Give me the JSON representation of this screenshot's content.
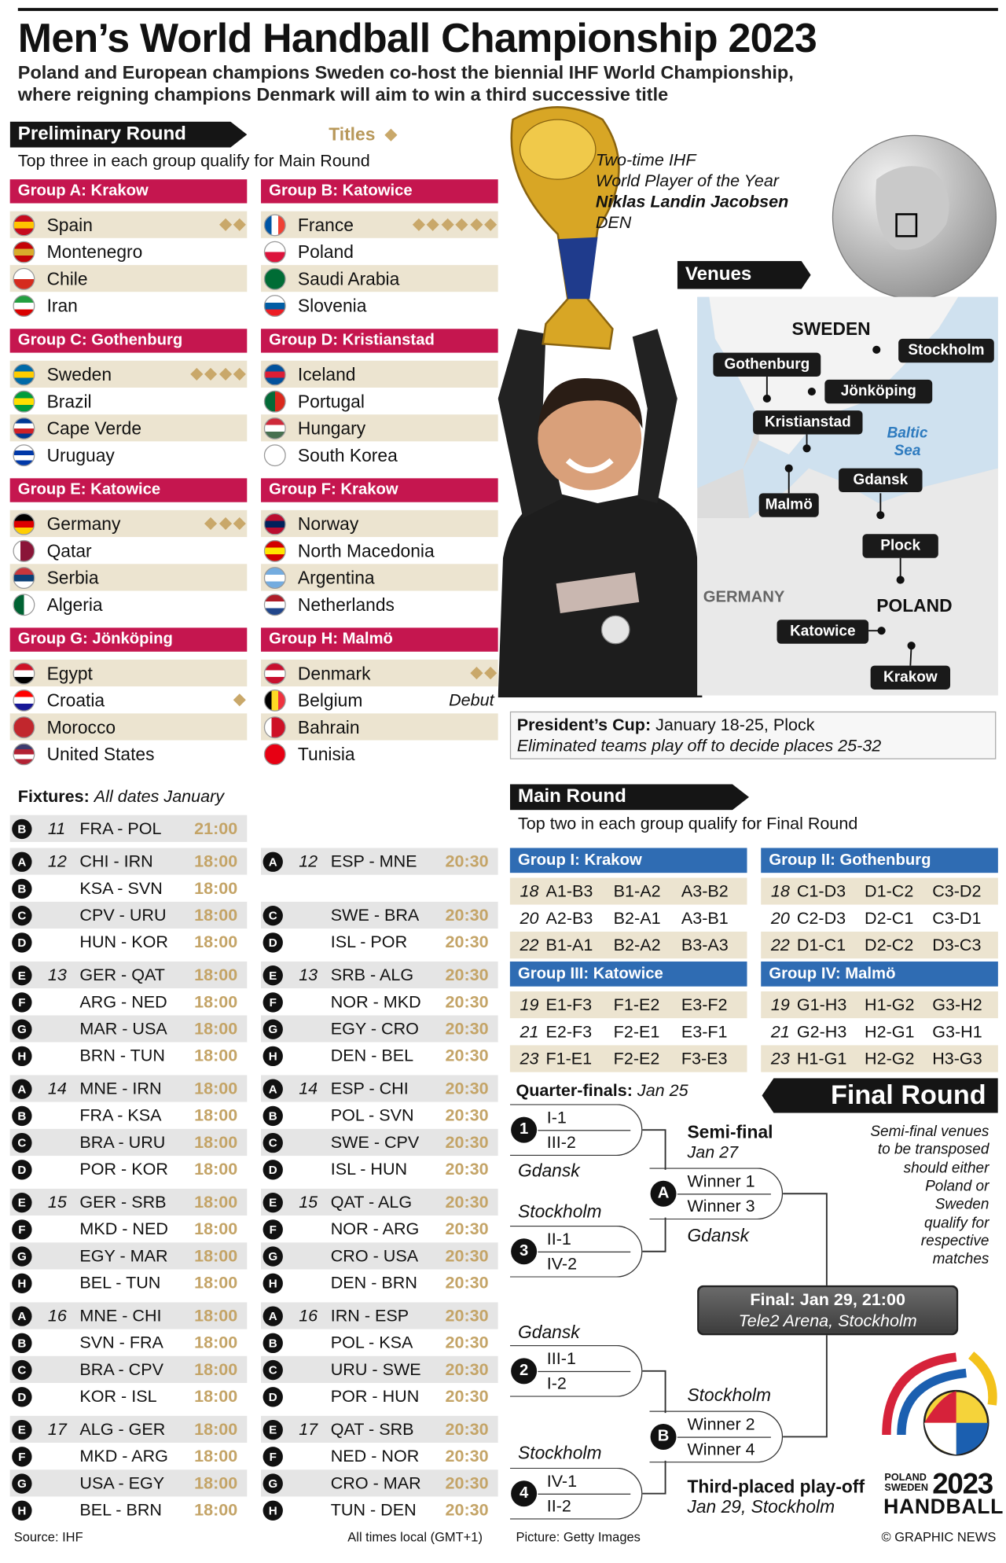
{
  "header": {
    "title": "Men’s World Handball Championship 2023",
    "subtitle_lines": [
      "Poland and European champions Sweden co-host the biennial IHF World Championship,",
      "where reigning champions Denmark will aim to win a third successive title"
    ]
  },
  "preliminary_round": {
    "heading": "Preliminary Round",
    "titles_label": "Titles",
    "note": "Top three in each group qualify for Main Round",
    "groups": [
      {
        "name": "Group A: Krakow",
        "teams": [
          {
            "name": "Spain",
            "titles": 2
          },
          {
            "name": "Montenegro"
          },
          {
            "name": "Chile"
          },
          {
            "name": "Iran"
          }
        ]
      },
      {
        "name": "Group B: Katowice",
        "teams": [
          {
            "name": "France",
            "titles": 6
          },
          {
            "name": "Poland"
          },
          {
            "name": "Saudi Arabia"
          },
          {
            "name": "Slovenia"
          }
        ]
      },
      {
        "name": "Group C: Gothenburg",
        "teams": [
          {
            "name": "Sweden",
            "titles": 4
          },
          {
            "name": "Brazil"
          },
          {
            "name": "Cape Verde"
          },
          {
            "name": "Uruguay"
          }
        ]
      },
      {
        "name": "Group D: Kristianstad",
        "teams": [
          {
            "name": "Iceland"
          },
          {
            "name": "Portugal"
          },
          {
            "name": "Hungary"
          },
          {
            "name": "South Korea"
          }
        ]
      },
      {
        "name": "Group E: Katowice",
        "teams": [
          {
            "name": "Germany",
            "titles": 3
          },
          {
            "name": "Qatar"
          },
          {
            "name": "Serbia"
          },
          {
            "name": "Algeria"
          }
        ]
      },
      {
        "name": "Group F: Krakow",
        "teams": [
          {
            "name": "Norway"
          },
          {
            "name": "North Macedonia"
          },
          {
            "name": "Argentina"
          },
          {
            "name": "Netherlands"
          }
        ]
      },
      {
        "name": "Group G: Jönköping",
        "teams": [
          {
            "name": "Egypt"
          },
          {
            "name": "Croatia",
            "titles": 1
          },
          {
            "name": "Morocco"
          },
          {
            "name": "United States"
          }
        ]
      },
      {
        "name": "Group H: Malmö",
        "teams": [
          {
            "name": "Denmark",
            "titles": 2
          },
          {
            "name": "Belgium",
            "note": "Debut"
          },
          {
            "name": "Bahrain"
          },
          {
            "name": "Tunisia"
          }
        ]
      }
    ]
  },
  "player": {
    "caption_lines": [
      "Two-time IHF",
      "World Player of the Year"
    ],
    "name": "Niklas Landin Jacobsen",
    "country": "DEN"
  },
  "venues": {
    "heading": "Venues",
    "regions": [
      "SWEDEN",
      "GERMANY",
      "POLAND"
    ],
    "sea": "Baltic Sea",
    "cities": [
      "Stockholm",
      "Gothenburg",
      "Jönköping",
      "Kristianstad",
      "Malmö",
      "Gdansk",
      "Plock",
      "Katowice",
      "Krakow"
    ]
  },
  "presidents_cup": {
    "label": "President’s Cup:",
    "dates": "January 18-25, Plock",
    "note": "Eliminated teams play off to decide places 25-32"
  },
  "fixtures": {
    "label": "Fixtures:",
    "note": "All dates January",
    "days": [
      {
        "day": 11,
        "left": [
          {
            "group": "B",
            "match": "FRA - POL",
            "time": "21:00"
          }
        ]
      },
      {
        "day": 12,
        "left": [
          {
            "group": "A",
            "match": "CHI - IRN",
            "time": "18:00"
          },
          {
            "group": "B",
            "match": "KSA - SVN",
            "time": "18:00"
          },
          {
            "group": "C",
            "match": "CPV - URU",
            "time": "18:00"
          },
          {
            "group": "D",
            "match": "HUN - KOR",
            "time": "18:00"
          }
        ],
        "right": [
          {
            "group": "A",
            "match": "ESP - MNE",
            "time": "20:30"
          },
          {
            "group": "C",
            "match": "SWE - BRA",
            "time": "20:30"
          },
          {
            "group": "D",
            "match": "ISL - POR",
            "time": "20:30"
          }
        ]
      },
      {
        "day": 13,
        "left": [
          {
            "group": "E",
            "match": "GER - QAT",
            "time": "18:00"
          },
          {
            "group": "F",
            "match": "ARG - NED",
            "time": "18:00"
          },
          {
            "group": "G",
            "match": "MAR - USA",
            "time": "18:00"
          },
          {
            "group": "H",
            "match": "BRN - TUN",
            "time": "18:00"
          }
        ],
        "right": [
          {
            "group": "E",
            "match": "SRB - ALG",
            "time": "20:30"
          },
          {
            "group": "F",
            "match": "NOR - MKD",
            "time": "20:30"
          },
          {
            "group": "G",
            "match": "EGY - CRO",
            "time": "20:30"
          },
          {
            "group": "H",
            "match": "DEN - BEL",
            "time": "20:30"
          }
        ]
      },
      {
        "day": 14,
        "left": [
          {
            "group": "A",
            "match": "MNE - IRN",
            "time": "18:00"
          },
          {
            "group": "B",
            "match": "FRA - KSA",
            "time": "18:00"
          },
          {
            "group": "C",
            "match": "BRA - URU",
            "time": "18:00"
          },
          {
            "group": "D",
            "match": "POR - KOR",
            "time": "18:00"
          }
        ],
        "right": [
          {
            "group": "A",
            "match": "ESP - CHI",
            "time": "20:30"
          },
          {
            "group": "B",
            "match": "POL - SVN",
            "time": "20:30"
          },
          {
            "group": "C",
            "match": "SWE - CPV",
            "time": "20:30"
          },
          {
            "group": "D",
            "match": "ISL - HUN",
            "time": "20:30"
          }
        ]
      },
      {
        "day": 15,
        "left": [
          {
            "group": "E",
            "match": "GER - SRB",
            "time": "18:00"
          },
          {
            "group": "F",
            "match": "MKD - NED",
            "time": "18:00"
          },
          {
            "group": "G",
            "match": "EGY - MAR",
            "time": "18:00"
          },
          {
            "group": "H",
            "match": "BEL - TUN",
            "time": "18:00"
          }
        ],
        "right": [
          {
            "group": "E",
            "match": "QAT - ALG",
            "time": "20:30"
          },
          {
            "group": "F",
            "match": "NOR - ARG",
            "time": "20:30"
          },
          {
            "group": "G",
            "match": "CRO - USA",
            "time": "20:30"
          },
          {
            "group": "H",
            "match": "DEN - BRN",
            "time": "20:30"
          }
        ]
      },
      {
        "day": 16,
        "left": [
          {
            "group": "A",
            "match": "MNE - CHI",
            "time": "18:00"
          },
          {
            "group": "B",
            "match": "SVN - FRA",
            "time": "18:00"
          },
          {
            "group": "C",
            "match": "BRA - CPV",
            "time": "18:00"
          },
          {
            "group": "D",
            "match": "KOR - ISL",
            "time": "18:00"
          }
        ],
        "right": [
          {
            "group": "A",
            "match": "IRN - ESP",
            "time": "20:30"
          },
          {
            "group": "B",
            "match": "POL - KSA",
            "time": "20:30"
          },
          {
            "group": "C",
            "match": "URU - SWE",
            "time": "20:30"
          },
          {
            "group": "D",
            "match": "POR - HUN",
            "time": "20:30"
          }
        ]
      },
      {
        "day": 17,
        "left": [
          {
            "group": "E",
            "match": "ALG - GER",
            "time": "18:00"
          },
          {
            "group": "F",
            "match": "MKD - ARG",
            "time": "18:00"
          },
          {
            "group": "G",
            "match": "USA - EGY",
            "time": "18:00"
          },
          {
            "group": "H",
            "match": "BEL - BRN",
            "time": "18:00"
          }
        ],
        "right": [
          {
            "group": "E",
            "match": "QAT - SRB",
            "time": "20:30"
          },
          {
            "group": "F",
            "match": "NED - NOR",
            "time": "20:30"
          },
          {
            "group": "G",
            "match": "CRO - MAR",
            "time": "20:30"
          },
          {
            "group": "H",
            "match": "TUN - DEN",
            "time": "20:30"
          }
        ]
      }
    ]
  },
  "main_round": {
    "heading": "Main Round",
    "note": "Top two in each group qualify for Final Round",
    "groups": [
      {
        "name": "Group I: Krakow",
        "rounds": [
          {
            "day": 18,
            "matches": [
              "A1-B3",
              "B1-A2",
              "A3-B2"
            ]
          },
          {
            "day": 20,
            "matches": [
              "A2-B3",
              "B2-A1",
              "A3-B1"
            ]
          },
          {
            "day": 22,
            "matches": [
              "B1-A1",
              "B2-A2",
              "B3-A3"
            ]
          }
        ]
      },
      {
        "name": "Group II: Gothenburg",
        "rounds": [
          {
            "day": 18,
            "matches": [
              "C1-D3",
              "D1-C2",
              "C3-D2"
            ]
          },
          {
            "day": 20,
            "matches": [
              "C2-D3",
              "D2-C1",
              "C3-D1"
            ]
          },
          {
            "day": 22,
            "matches": [
              "D1-C1",
              "D2-C2",
              "D3-C3"
            ]
          }
        ]
      },
      {
        "name": "Group III: Katowice",
        "rounds": [
          {
            "day": 19,
            "matches": [
              "E1-F3",
              "F1-E2",
              "E3-F2"
            ]
          },
          {
            "day": 21,
            "matches": [
              "E2-F3",
              "F2-E1",
              "E3-F1"
            ]
          },
          {
            "day": 23,
            "matches": [
              "F1-E1",
              "F2-E2",
              "F3-E3"
            ]
          }
        ]
      },
      {
        "name": "Group IV: Malmö",
        "rounds": [
          {
            "day": 19,
            "matches": [
              "G1-H3",
              "H1-G2",
              "G3-H2"
            ]
          },
          {
            "day": 21,
            "matches": [
              "G2-H3",
              "H2-G1",
              "G3-H1"
            ]
          },
          {
            "day": 23,
            "matches": [
              "H1-G1",
              "H2-G2",
              "H3-G3"
            ]
          }
        ]
      }
    ]
  },
  "final_round": {
    "heading": "Final Round",
    "qf_label": "Quarter-finals:",
    "qf_date": "Jan 25",
    "sf_label": "Semi-final",
    "sf_date": "Jan 27",
    "quarter_finals": [
      {
        "id": 1,
        "teams": [
          "I-1",
          "III-2"
        ],
        "venue": "Gdansk"
      },
      {
        "id": 3,
        "teams": [
          "II-1",
          "IV-2"
        ],
        "venue": "Stockholm"
      },
      {
        "id": 2,
        "teams": [
          "III-1",
          "I-2"
        ],
        "venue": "Gdansk"
      },
      {
        "id": 4,
        "teams": [
          "IV-1",
          "II-2"
        ],
        "venue": "Stockholm"
      }
    ],
    "semi_finals": [
      {
        "id": "A",
        "teams": [
          "Winner 1",
          "Winner 3"
        ],
        "venue": "Gdansk"
      },
      {
        "id": "B",
        "teams": [
          "Winner 2",
          "Winner 4"
        ],
        "venue": "Stockholm"
      }
    ],
    "note_lines": [
      "Semi-final venues",
      "to be transposed",
      "should either",
      "Poland or",
      "Sweden",
      "qualify for",
      "respective",
      "matches"
    ],
    "final": {
      "title": "Final: Jan 29, 21:00",
      "venue": "Tele2 Arena, Stockholm"
    },
    "third_place": {
      "title": "Third-placed play-off",
      "date": "Jan 29, Stockholm"
    }
  },
  "logo": {
    "countries": [
      "POLAND",
      "SWEDEN"
    ],
    "year": 2023,
    "sport": "HANDBALL"
  },
  "footer": {
    "source": "Source: IHF",
    "times": "All times local (GMT+1)",
    "picture": "Picture: Getty Images",
    "credit": "© GRAPHIC NEWS"
  }
}
